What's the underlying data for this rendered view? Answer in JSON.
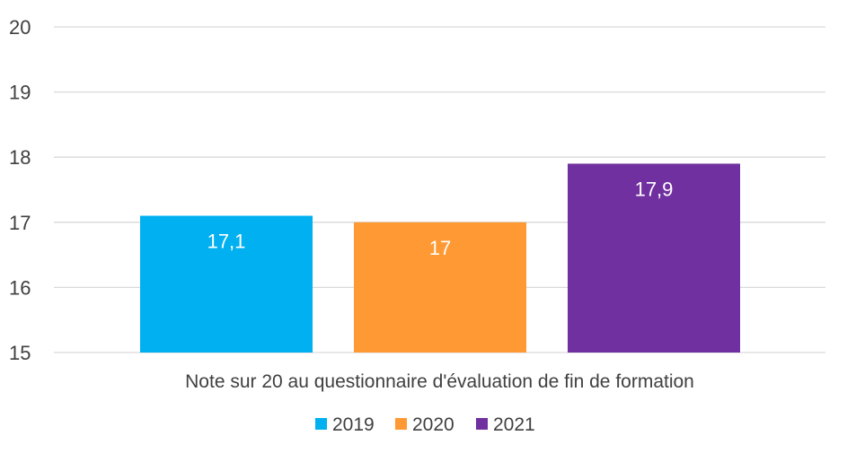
{
  "chart_data": {
    "type": "bar",
    "title": "",
    "xlabel": "",
    "ylabel": "",
    "categories": [
      "Note sur 20 au questionnaire d'évaluation de fin de formation"
    ],
    "series": [
      {
        "name": "2019",
        "values": [
          17.1
        ],
        "label": "17,1",
        "color": "#00B0F0"
      },
      {
        "name": "2020",
        "values": [
          17.0
        ],
        "label": "17",
        "color": "#FF9933"
      },
      {
        "name": "2021",
        "values": [
          17.9
        ],
        "label": "17,9",
        "color": "#7030A0"
      }
    ],
    "ylim": [
      15,
      20
    ],
    "yticks": [
      "15",
      "16",
      "17",
      "18",
      "19",
      "20"
    ],
    "grid": true,
    "gridline_color": "#D9D9D9",
    "legend_position": "bottom"
  }
}
